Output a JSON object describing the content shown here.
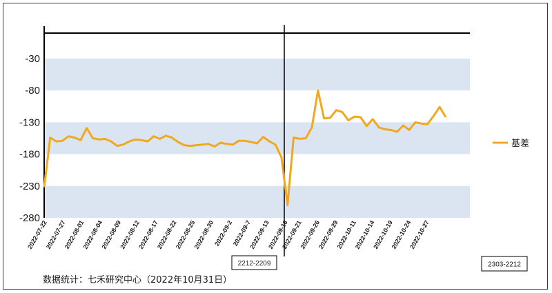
{
  "chart_data": {
    "type": "line",
    "title": "",
    "xlabel": "",
    "ylabel": "",
    "ylim": [
      -280,
      10
    ],
    "yticks": [
      -30,
      -80,
      -130,
      -180,
      -230,
      -280
    ],
    "band_color": "#dbe5f1",
    "grid": false,
    "legend_position": "right",
    "x_tick_labels": [
      "2022-07-22",
      "2022-07-27",
      "2022-08-01",
      "2022-08-04",
      "2022-08-09",
      "2022-08-12",
      "2022-08-17",
      "2022-08-22",
      "2022-08-25",
      "2022-08-30",
      "2022-09-2",
      "2022-09-7",
      "2022-09-13",
      "2022-09-16",
      "2022-09-21",
      "2022-09-26",
      "2022-09-29",
      "2022-10-11",
      "2022-10-14",
      "2022-10-19",
      "2022-10-24",
      "2022-10-27"
    ],
    "series": [
      {
        "name": "基差",
        "color": "#f0a81e",
        "values": [
          -232,
          -154,
          -160,
          -159,
          -152,
          -154,
          -158,
          -139,
          -155,
          -157,
          -156,
          -160,
          -167,
          -165,
          -160,
          -157,
          -158,
          -160,
          -152,
          -156,
          -151,
          -154,
          -161,
          -166,
          -167,
          -166,
          -165,
          -164,
          -168,
          -162,
          -164,
          -165,
          -159,
          -159,
          -161,
          -163,
          -153,
          -160,
          -165,
          -185,
          -260,
          -154,
          -156,
          -155,
          -138,
          -80,
          -124,
          -123,
          -111,
          -114,
          -127,
          -121,
          -122,
          -136,
          -125,
          -138,
          -141,
          -142,
          -145,
          -135,
          -142,
          -130,
          -132,
          -133,
          -120,
          -106,
          -122
        ]
      }
    ],
    "annotations": [
      {
        "text": "2212-2209"
      },
      {
        "text": "2303-2212"
      }
    ]
  },
  "source_note": "数据统计：七禾研究中心（2022年10月31日）"
}
